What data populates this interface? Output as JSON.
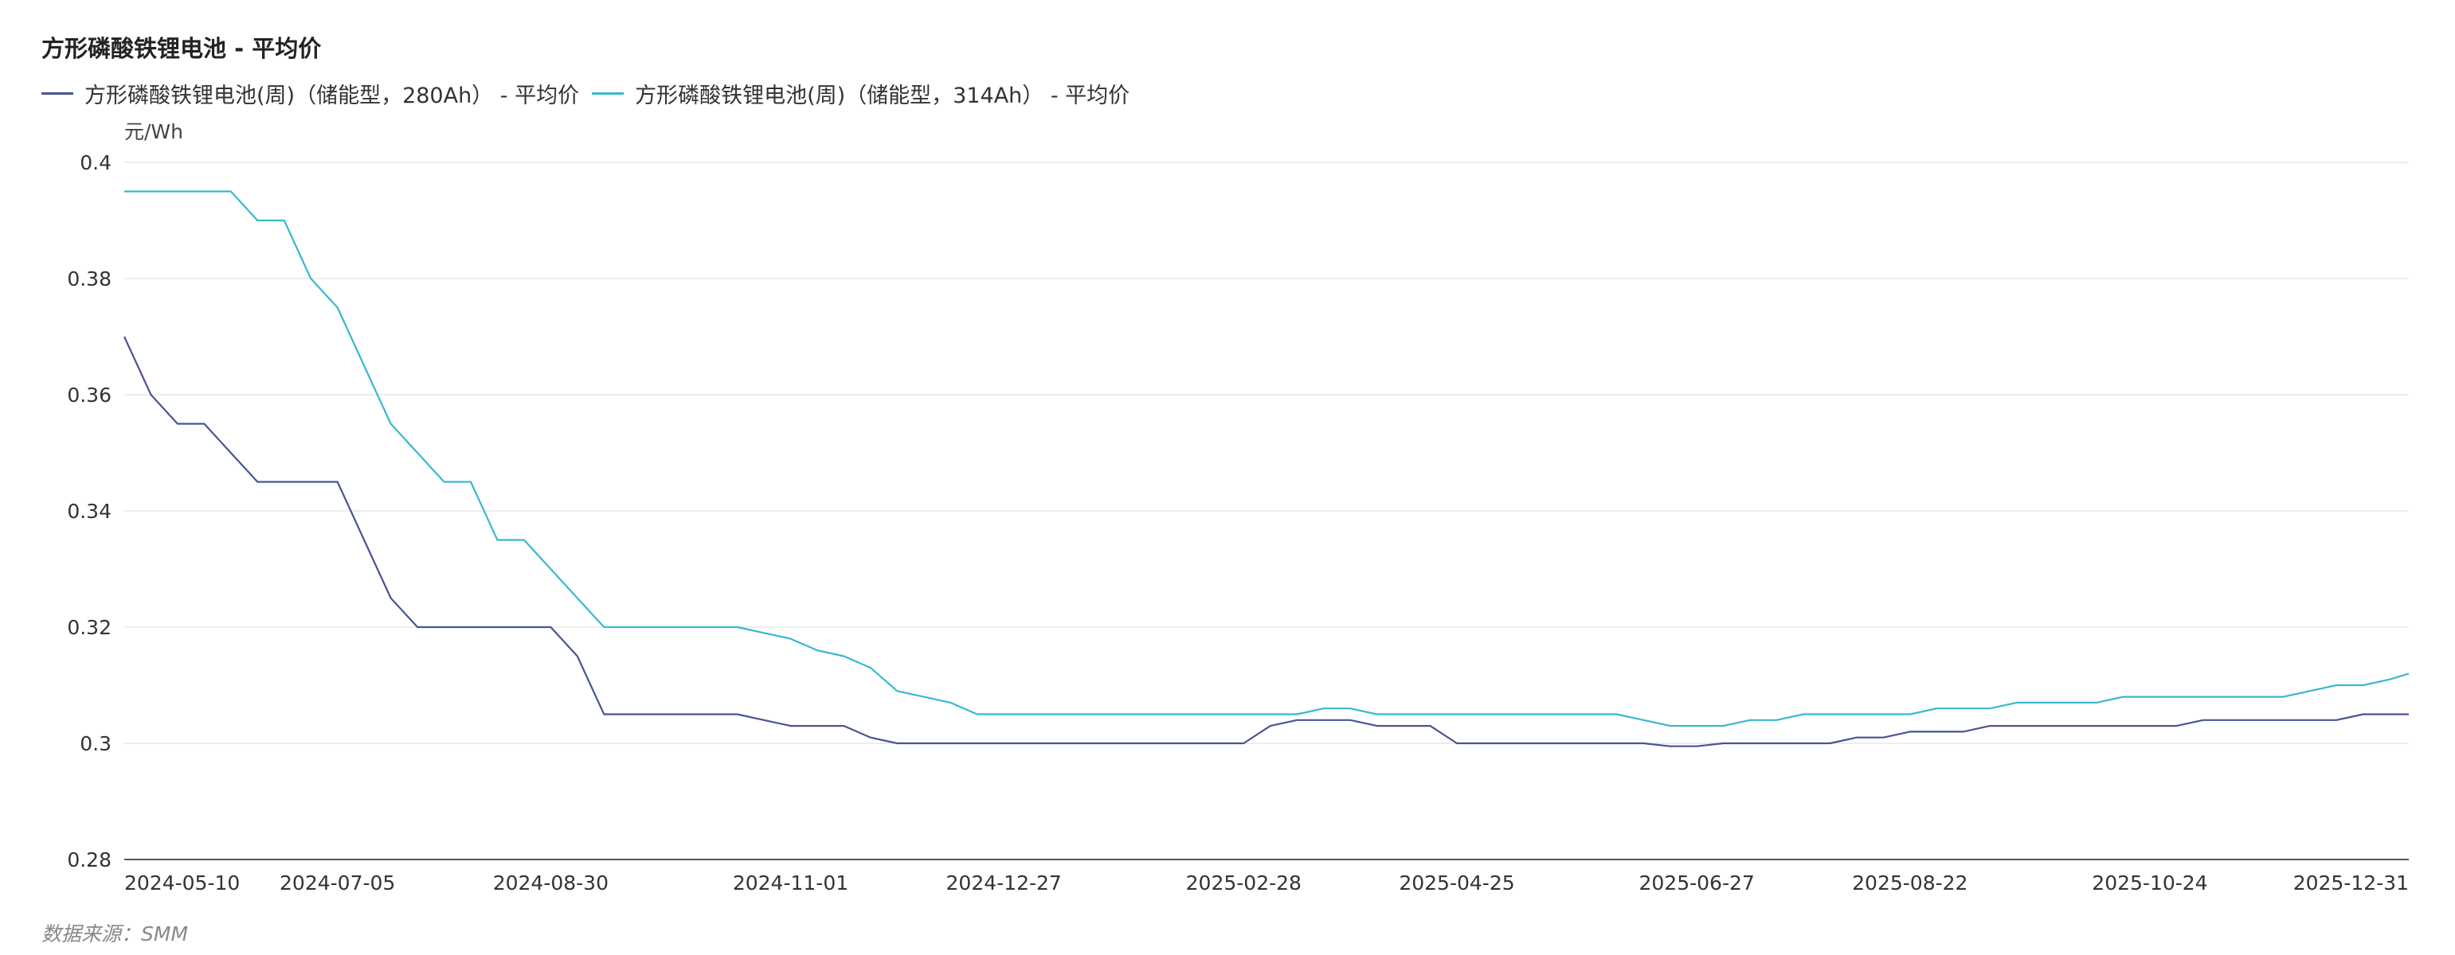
{
  "chart_data": {
    "type": "line",
    "title": "方形磷酸铁锂电池 - 平均价",
    "ylabel": "元/Wh",
    "source_note": "数据来源：SMM",
    "ylim": [
      0.28,
      0.4
    ],
    "yticks": [
      "0.4",
      "0.38",
      "0.36",
      "0.34",
      "0.32",
      "0.3",
      "0.28"
    ],
    "xticks": [
      "2024-05-10",
      "2024-07-05",
      "2024-08-30",
      "2024-11-01",
      "2024-12-27",
      "2025-02-28",
      "2025-04-25",
      "2025-06-27",
      "2025-08-22",
      "2025-10-24",
      "2025-12-31"
    ],
    "grid": true,
    "legend_position": "top-left",
    "series": [
      {
        "name": "方形磷酸铁锂电池(周)（储能型，280Ah） - 平均价",
        "color": "#4a5494",
        "points": [
          [
            "2024-05-10",
            0.37
          ],
          [
            "2024-05-17",
            0.36
          ],
          [
            "2024-05-24",
            0.355
          ],
          [
            "2024-05-31",
            0.355
          ],
          [
            "2024-06-07",
            0.35
          ],
          [
            "2024-06-14",
            0.345
          ],
          [
            "2024-06-21",
            0.345
          ],
          [
            "2024-06-28",
            0.345
          ],
          [
            "2024-07-05",
            0.345
          ],
          [
            "2024-07-12",
            0.335
          ],
          [
            "2024-07-19",
            0.325
          ],
          [
            "2024-07-26",
            0.32
          ],
          [
            "2024-08-02",
            0.32
          ],
          [
            "2024-08-09",
            0.32
          ],
          [
            "2024-08-16",
            0.32
          ],
          [
            "2024-08-23",
            0.32
          ],
          [
            "2024-08-30",
            0.32
          ],
          [
            "2024-09-06",
            0.315
          ],
          [
            "2024-09-13",
            0.305
          ],
          [
            "2024-09-20",
            0.305
          ],
          [
            "2024-09-27",
            0.305
          ],
          [
            "2024-10-11",
            0.305
          ],
          [
            "2024-10-18",
            0.305
          ],
          [
            "2024-10-25",
            0.304
          ],
          [
            "2024-11-01",
            0.303
          ],
          [
            "2024-11-08",
            0.303
          ],
          [
            "2024-11-15",
            0.303
          ],
          [
            "2024-11-22",
            0.301
          ],
          [
            "2024-11-29",
            0.3
          ],
          [
            "2024-12-06",
            0.3
          ],
          [
            "2024-12-13",
            0.3
          ],
          [
            "2024-12-20",
            0.3
          ],
          [
            "2024-12-27",
            0.3
          ],
          [
            "2025-01-03",
            0.3
          ],
          [
            "2025-01-10",
            0.3
          ],
          [
            "2025-01-17",
            0.3
          ],
          [
            "2025-01-24",
            0.3
          ],
          [
            "2025-02-07",
            0.3
          ],
          [
            "2025-02-14",
            0.3
          ],
          [
            "2025-02-21",
            0.3
          ],
          [
            "2025-02-28",
            0.3
          ],
          [
            "2025-03-07",
            0.303
          ],
          [
            "2025-03-14",
            0.304
          ],
          [
            "2025-03-21",
            0.304
          ],
          [
            "2025-03-28",
            0.304
          ],
          [
            "2025-04-04",
            0.303
          ],
          [
            "2025-04-11",
            0.303
          ],
          [
            "2025-04-18",
            0.303
          ],
          [
            "2025-04-25",
            0.3
          ],
          [
            "2025-05-02",
            0.3
          ],
          [
            "2025-05-09",
            0.3
          ],
          [
            "2025-05-16",
            0.3
          ],
          [
            "2025-05-23",
            0.3
          ],
          [
            "2025-05-30",
            0.3
          ],
          [
            "2025-06-06",
            0.3
          ],
          [
            "2025-06-13",
            0.3
          ],
          [
            "2025-06-20",
            0.2995
          ],
          [
            "2025-06-27",
            0.2995
          ],
          [
            "2025-07-04",
            0.3
          ],
          [
            "2025-07-11",
            0.3
          ],
          [
            "2025-07-18",
            0.3
          ],
          [
            "2025-07-25",
            0.3
          ],
          [
            "2025-08-01",
            0.3
          ],
          [
            "2025-08-08",
            0.301
          ],
          [
            "2025-08-15",
            0.301
          ],
          [
            "2025-08-22",
            0.302
          ],
          [
            "2025-08-29",
            0.302
          ],
          [
            "2025-09-05",
            0.302
          ],
          [
            "2025-09-12",
            0.303
          ],
          [
            "2025-09-19",
            0.303
          ],
          [
            "2025-09-26",
            0.303
          ],
          [
            "2025-10-10",
            0.303
          ],
          [
            "2025-10-17",
            0.303
          ],
          [
            "2025-10-24",
            0.303
          ],
          [
            "2025-10-31",
            0.303
          ],
          [
            "2025-11-07",
            0.304
          ],
          [
            "2025-11-14",
            0.304
          ],
          [
            "2025-11-21",
            0.304
          ],
          [
            "2025-11-28",
            0.304
          ],
          [
            "2025-12-05",
            0.304
          ],
          [
            "2025-12-12",
            0.304
          ],
          [
            "2025-12-19",
            0.305
          ],
          [
            "2025-12-26",
            0.305
          ],
          [
            "2025-12-31",
            0.305
          ]
        ]
      },
      {
        "name": "方形磷酸铁锂电池(周)（储能型，314Ah） - 平均价",
        "color": "#3bb8cc",
        "points": [
          [
            "2024-05-10",
            0.395
          ],
          [
            "2024-05-17",
            0.395
          ],
          [
            "2024-05-24",
            0.395
          ],
          [
            "2024-05-31",
            0.395
          ],
          [
            "2024-06-07",
            0.395
          ],
          [
            "2024-06-14",
            0.39
          ],
          [
            "2024-06-21",
            0.39
          ],
          [
            "2024-06-28",
            0.38
          ],
          [
            "2024-07-05",
            0.375
          ],
          [
            "2024-07-12",
            0.365
          ],
          [
            "2024-07-19",
            0.355
          ],
          [
            "2024-07-26",
            0.35
          ],
          [
            "2024-08-02",
            0.345
          ],
          [
            "2024-08-09",
            0.345
          ],
          [
            "2024-08-16",
            0.335
          ],
          [
            "2024-08-23",
            0.335
          ],
          [
            "2024-08-30",
            0.33
          ],
          [
            "2024-09-06",
            0.325
          ],
          [
            "2024-09-13",
            0.32
          ],
          [
            "2024-09-20",
            0.32
          ],
          [
            "2024-09-27",
            0.32
          ],
          [
            "2024-10-11",
            0.32
          ],
          [
            "2024-10-18",
            0.32
          ],
          [
            "2024-10-25",
            0.319
          ],
          [
            "2024-11-01",
            0.318
          ],
          [
            "2024-11-08",
            0.316
          ],
          [
            "2024-11-15",
            0.315
          ],
          [
            "2024-11-22",
            0.313
          ],
          [
            "2024-11-29",
            0.309
          ],
          [
            "2024-12-06",
            0.308
          ],
          [
            "2024-12-13",
            0.307
          ],
          [
            "2024-12-20",
            0.305
          ],
          [
            "2024-12-27",
            0.305
          ],
          [
            "2025-01-03",
            0.305
          ],
          [
            "2025-01-10",
            0.305
          ],
          [
            "2025-01-17",
            0.305
          ],
          [
            "2025-01-24",
            0.305
          ],
          [
            "2025-02-07",
            0.305
          ],
          [
            "2025-02-14",
            0.305
          ],
          [
            "2025-02-21",
            0.305
          ],
          [
            "2025-02-28",
            0.305
          ],
          [
            "2025-03-07",
            0.305
          ],
          [
            "2025-03-14",
            0.305
          ],
          [
            "2025-03-21",
            0.306
          ],
          [
            "2025-03-28",
            0.306
          ],
          [
            "2025-04-04",
            0.305
          ],
          [
            "2025-04-11",
            0.305
          ],
          [
            "2025-04-18",
            0.305
          ],
          [
            "2025-04-25",
            0.305
          ],
          [
            "2025-05-02",
            0.305
          ],
          [
            "2025-05-09",
            0.305
          ],
          [
            "2025-05-16",
            0.305
          ],
          [
            "2025-05-23",
            0.305
          ],
          [
            "2025-05-30",
            0.305
          ],
          [
            "2025-06-06",
            0.305
          ],
          [
            "2025-06-13",
            0.304
          ],
          [
            "2025-06-20",
            0.303
          ],
          [
            "2025-06-27",
            0.303
          ],
          [
            "2025-07-04",
            0.303
          ],
          [
            "2025-07-11",
            0.304
          ],
          [
            "2025-07-18",
            0.304
          ],
          [
            "2025-07-25",
            0.305
          ],
          [
            "2025-08-01",
            0.305
          ],
          [
            "2025-08-08",
            0.305
          ],
          [
            "2025-08-15",
            0.305
          ],
          [
            "2025-08-22",
            0.305
          ],
          [
            "2025-08-29",
            0.306
          ],
          [
            "2025-09-05",
            0.306
          ],
          [
            "2025-09-12",
            0.306
          ],
          [
            "2025-09-19",
            0.307
          ],
          [
            "2025-09-26",
            0.307
          ],
          [
            "2025-10-10",
            0.307
          ],
          [
            "2025-10-17",
            0.308
          ],
          [
            "2025-10-24",
            0.308
          ],
          [
            "2025-10-31",
            0.308
          ],
          [
            "2025-11-07",
            0.308
          ],
          [
            "2025-11-14",
            0.308
          ],
          [
            "2025-11-21",
            0.308
          ],
          [
            "2025-11-28",
            0.308
          ],
          [
            "2025-12-05",
            0.309
          ],
          [
            "2025-12-12",
            0.31
          ],
          [
            "2025-12-19",
            0.31
          ],
          [
            "2025-12-26",
            0.311
          ],
          [
            "2025-12-31",
            0.312
          ]
        ]
      }
    ]
  }
}
